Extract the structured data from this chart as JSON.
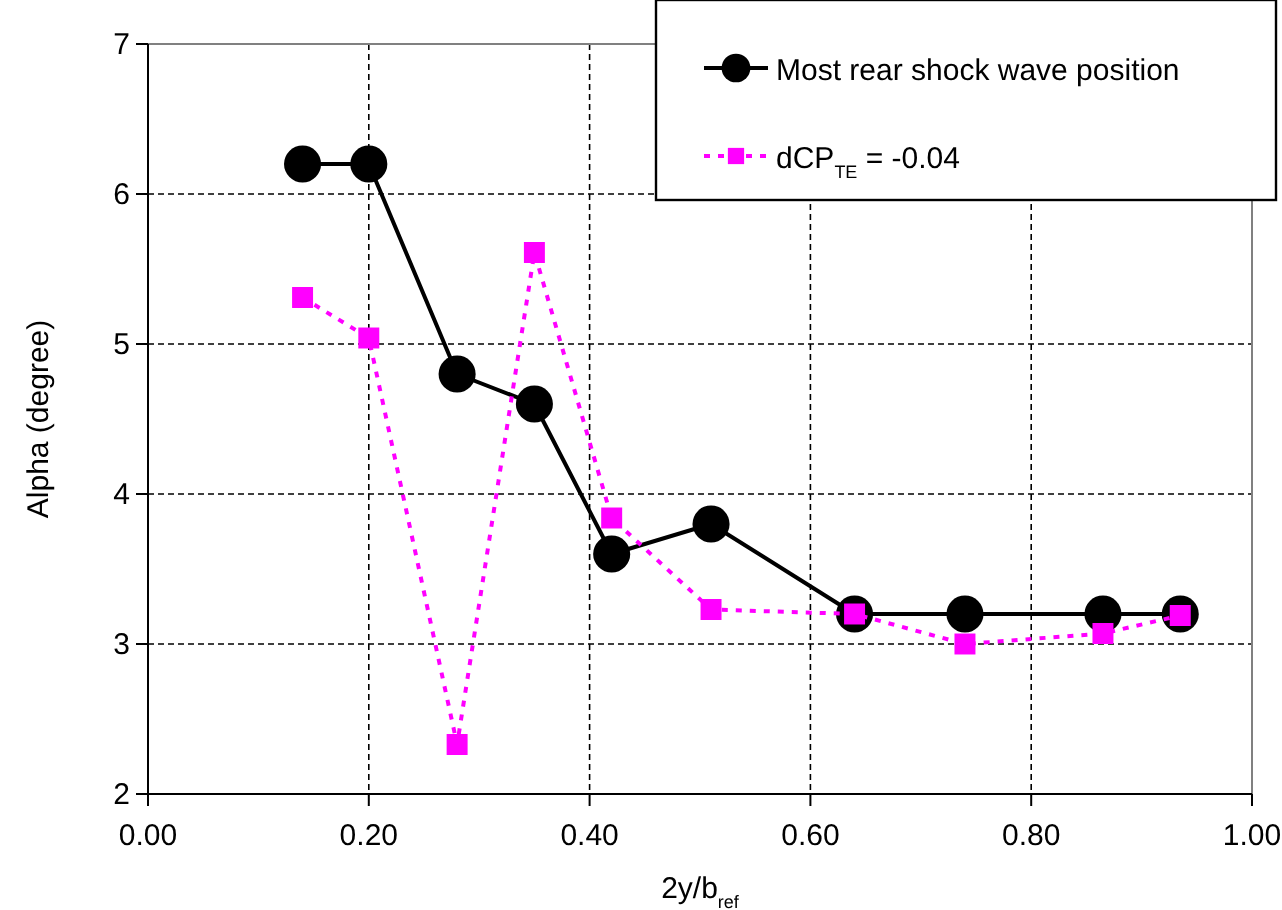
{
  "chart_data": {
    "type": "line",
    "xlabel": "2y/b$_{ref}$",
    "ylabel": "Alpha (degree)",
    "xlim": [
      0,
      1
    ],
    "xticks": [
      {
        "value": 0,
        "label": "0.00"
      },
      {
        "value": 0.2,
        "label": "0.20"
      },
      {
        "value": 0.4,
        "label": "0.40"
      },
      {
        "value": 0.6,
        "label": "0.60"
      },
      {
        "value": 0.8,
        "label": "0.80"
      },
      {
        "value": 1,
        "label": "1.00"
      }
    ],
    "ylim": [
      2,
      7
    ],
    "yticks": [
      2,
      3,
      4,
      5,
      6,
      7
    ],
    "grid": true,
    "legend": "top right",
    "series": [
      {
        "name": "Most rear shock wave position",
        "color": "#000000",
        "marker": "circle",
        "line_style": "solid",
        "x": [
          0.14,
          0.2,
          0.28,
          0.35,
          0.42,
          0.51,
          0.64,
          0.74,
          0.865,
          0.935
        ],
        "values": [
          6.2,
          6.2,
          4.8,
          4.6,
          3.6,
          3.8,
          3.2,
          3.2,
          3.2,
          3.2
        ]
      },
      {
        "name": "dCP$_{TE}$ = -0.04",
        "color": "#ff00ff",
        "marker": "square",
        "line_style": "dotted",
        "x": [
          0.14,
          0.2,
          0.28,
          0.35,
          0.42,
          0.51,
          0.64,
          0.74,
          0.865,
          0.935
        ],
        "values": [
          5.31,
          5.04,
          2.33,
          5.61,
          3.84,
          3.23,
          3.2,
          3.0,
          3.07,
          3.19
        ]
      }
    ]
  }
}
